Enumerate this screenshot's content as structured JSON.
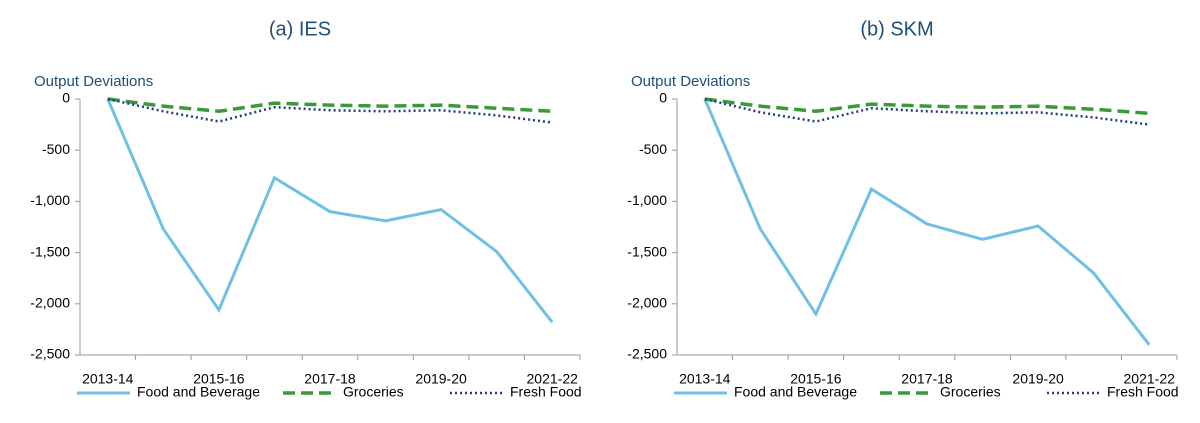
{
  "chart_data": [
    {
      "type": "line",
      "title": "(a) IES",
      "y_label": "Output  Deviations",
      "categories": [
        "2013-14",
        null,
        "2015-16",
        null,
        "2017-18",
        null,
        "2019-20",
        null,
        "2021-22"
      ],
      "series": [
        {
          "name": "Food and Beverage",
          "color": "#6ec1e4",
          "style": "solid",
          "values": [
            0,
            -1270,
            -2060,
            -770,
            -1100,
            -1190,
            -1080,
            -1490,
            -2180
          ]
        },
        {
          "name": "Groceries",
          "color": "#3a9a3a",
          "style": "dashed",
          "values": [
            0,
            -70,
            -120,
            -40,
            -60,
            -70,
            -60,
            -90,
            -120
          ]
        },
        {
          "name": "Fresh Food",
          "color": "#1f3c88",
          "style": "dotted",
          "values": [
            0,
            -120,
            -220,
            -80,
            -110,
            -120,
            -110,
            -160,
            -230
          ]
        }
      ],
      "ylim": [
        -2500,
        0
      ],
      "yticks": [
        0,
        -500,
        {
          "value": -1000,
          "label": "-1,000"
        },
        {
          "value": -1500,
          "label": "-1,500"
        },
        {
          "value": -2000,
          "label": "-2,000"
        },
        {
          "value": -2500,
          "label": "-2,500"
        }
      ],
      "grid": false,
      "legend": "bottom"
    },
    {
      "type": "line",
      "title": "(b) SKM",
      "y_label": "Output  Deviations",
      "categories": [
        "2013-14",
        null,
        "2015-16",
        null,
        "2017-18",
        null,
        "2019-20",
        null,
        "2021-22"
      ],
      "series": [
        {
          "name": "Food and Beverage",
          "color": "#6ec1e4",
          "style": "solid",
          "values": [
            0,
            -1270,
            -2100,
            -880,
            -1220,
            -1370,
            -1240,
            -1700,
            -2400
          ]
        },
        {
          "name": "Groceries",
          "color": "#3a9a3a",
          "style": "dashed",
          "values": [
            0,
            -70,
            -120,
            -50,
            -70,
            -80,
            -70,
            -100,
            -140
          ]
        },
        {
          "name": "Fresh Food",
          "color": "#1f3c88",
          "style": "dotted",
          "values": [
            0,
            -130,
            -220,
            -90,
            -120,
            -140,
            -130,
            -180,
            -250
          ]
        }
      ],
      "ylim": [
        -2500,
        0
      ],
      "yticks": [
        0,
        -500,
        {
          "value": -1000,
          "label": "-1,000"
        },
        {
          "value": -1500,
          "label": "-1,500"
        },
        {
          "value": -2000,
          "label": "-2,000"
        },
        {
          "value": -2500,
          "label": "-2,500"
        }
      ],
      "grid": false,
      "legend": "bottom"
    }
  ]
}
